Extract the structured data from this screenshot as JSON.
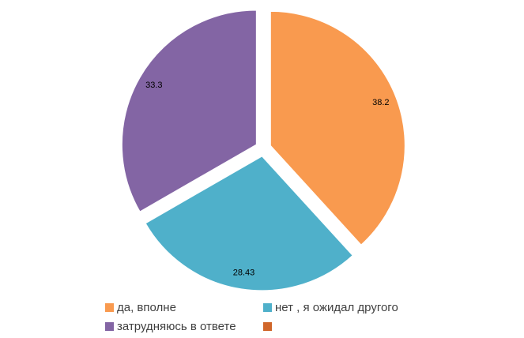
{
  "chart_data": {
    "type": "pie",
    "categories": [
      "да, вполне",
      "нет , я ожидал другого",
      "затрудняюсь в ответе",
      null
    ],
    "values": [
      38.2,
      28.43,
      33.3,
      null
    ],
    "colors": [
      "#f99a4f",
      "#4fb0ca",
      "#8365a4",
      "#d0662a"
    ],
    "exploded": true
  }
}
